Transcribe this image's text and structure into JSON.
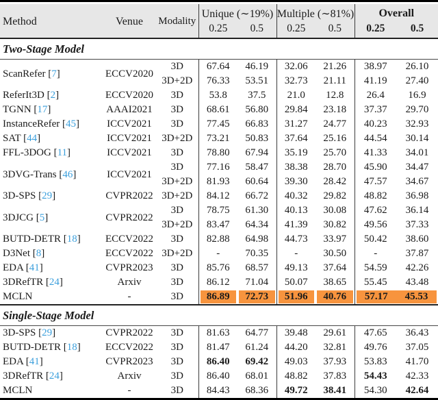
{
  "colors": {
    "highlight": "#f7943e",
    "header_background": "#e7e7e7",
    "citation": "#3b9fdc",
    "rule": "#000000"
  },
  "table": {
    "header": {
      "method": "Method",
      "venue": "Venue",
      "modality": "Modality",
      "groups": [
        {
          "label": "Unique (∼19%)",
          "bold": false
        },
        {
          "label": "Multiple (∼81%)",
          "bold": false
        },
        {
          "label": "Overall",
          "bold": true
        }
      ],
      "subheaders": [
        "0.25",
        "0.5",
        "0.25",
        "0.5",
        "0.25",
        "0.5"
      ],
      "subheaders_bold": [
        false,
        false,
        false,
        false,
        true,
        true
      ]
    },
    "sections": [
      {
        "title": "Two-Stage Model",
        "rows": [
          {
            "method": "ScanRefer",
            "cite": "7",
            "venue": "ECCV2020",
            "span": 2,
            "modality": "3D",
            "values": [
              "67.64",
              "46.19",
              "32.06",
              "21.26",
              "38.97",
              "26.10"
            ]
          },
          {
            "modality": "3D+2D",
            "values": [
              "76.33",
              "53.51",
              "32.73",
              "21.11",
              "41.19",
              "27.40"
            ]
          },
          {
            "method": "ReferIt3D",
            "cite": "2",
            "venue": "ECCV2020",
            "modality": "3D",
            "values": [
              "53.8",
              "37.5",
              "21.0",
              "12.8",
              "26.4",
              "16.9"
            ]
          },
          {
            "method": "TGNN",
            "cite": "17",
            "venue": "AAAI2021",
            "modality": "3D",
            "values": [
              "68.61",
              "56.80",
              "29.84",
              "23.18",
              "37.37",
              "29.70"
            ]
          },
          {
            "method": "InstanceRefer",
            "cite": "45",
            "venue": "ICCV2021",
            "modality": "3D",
            "values": [
              "77.45",
              "66.83",
              "31.27",
              "24.77",
              "40.23",
              "32.93"
            ]
          },
          {
            "method": "SAT",
            "cite": "44",
            "venue": "ICCV2021",
            "modality": "3D+2D",
            "values": [
              "73.21",
              "50.83",
              "37.64",
              "25.16",
              "44.54",
              "30.14"
            ]
          },
          {
            "method": "FFL-3DOG",
            "cite": "11",
            "venue": "ICCV2021",
            "modality": "3D",
            "values": [
              "78.80",
              "67.94",
              "35.19",
              "25.70",
              "41.33",
              "34.01"
            ]
          },
          {
            "method": "3DVG-Trans",
            "cite": "46",
            "venue": "ICCV2021",
            "span": 2,
            "modality": "3D",
            "values": [
              "77.16",
              "58.47",
              "38.38",
              "28.70",
              "45.90",
              "34.47"
            ]
          },
          {
            "modality": "3D+2D",
            "values": [
              "81.93",
              "60.64",
              "39.30",
              "28.42",
              "47.57",
              "34.67"
            ]
          },
          {
            "method": "3D-SPS",
            "cite": "29",
            "venue": "CVPR2022",
            "modality": "3D+2D",
            "values": [
              "84.12",
              "66.72",
              "40.32",
              "29.82",
              "48.82",
              "36.98"
            ]
          },
          {
            "method": "3DJCG",
            "cite": "5",
            "venue": "CVPR2022",
            "span": 2,
            "modality": "3D",
            "values": [
              "78.75",
              "61.30",
              "40.13",
              "30.08",
              "47.62",
              "36.14"
            ]
          },
          {
            "modality": "3D+2D",
            "values": [
              "83.47",
              "64.34",
              "41.39",
              "30.82",
              "49.56",
              "37.33"
            ]
          },
          {
            "method": "BUTD-DETR",
            "cite": "18",
            "venue": "ECCV2022",
            "modality": "3D",
            "values": [
              "82.88",
              "64.98",
              "44.73",
              "33.97",
              "50.42",
              "38.60"
            ]
          },
          {
            "method": "D3Net",
            "cite": "8",
            "venue": "ECCV2022",
            "modality": "3D+2D",
            "values": [
              "-",
              "70.35",
              "-",
              "30.50",
              "-",
              "37.87"
            ]
          },
          {
            "method": "EDA",
            "cite": "41",
            "venue": "CVPR2023",
            "modality": "3D",
            "values": [
              "85.76",
              "68.57",
              "49.13",
              "37.64",
              "54.59",
              "42.26"
            ]
          },
          {
            "method": "3DRefTR",
            "cite": "24",
            "venue": "Arxiv",
            "modality": "3D",
            "values": [
              "86.12",
              "71.04",
              "50.07",
              "38.65",
              "55.45",
              "43.48"
            ]
          },
          {
            "method": "MCLN",
            "venue": "-",
            "modality": "3D",
            "highlight": true,
            "bold": [
              0,
              1,
              2,
              3,
              4,
              5
            ],
            "values": [
              "86.89",
              "72.73",
              "51.96",
              "40.76",
              "57.17",
              "45.53"
            ]
          }
        ]
      },
      {
        "title": "Single-Stage Model",
        "rows": [
          {
            "method": "3D-SPS",
            "cite": "29",
            "venue": "CVPR2022",
            "modality": "3D",
            "values": [
              "81.63",
              "64.77",
              "39.48",
              "29.61",
              "47.65",
              "36.43"
            ]
          },
          {
            "method": "BUTD-DETR",
            "cite": "18",
            "venue": "ECCV2022",
            "modality": "3D",
            "values": [
              "81.47",
              "61.24",
              "44.20",
              "32.81",
              "49.76",
              "37.05"
            ]
          },
          {
            "method": "EDA",
            "cite": "41",
            "venue": "CVPR2023",
            "modality": "3D",
            "bold": [
              0,
              1
            ],
            "values": [
              "86.40",
              "69.42",
              "49.03",
              "37.93",
              "53.83",
              "41.70"
            ]
          },
          {
            "method": "3DRefTR",
            "cite": "24",
            "venue": "Arxiv",
            "modality": "3D",
            "bold": [
              4
            ],
            "values": [
              "86.40",
              "68.01",
              "48.82",
              "37.83",
              "54.43",
              "42.33"
            ]
          },
          {
            "method": "MCLN",
            "venue": "-",
            "modality": "3D",
            "bold": [
              2,
              3,
              5
            ],
            "values": [
              "84.43",
              "68.36",
              "49.72",
              "38.41",
              "54.30",
              "42.64"
            ]
          }
        ]
      }
    ]
  }
}
